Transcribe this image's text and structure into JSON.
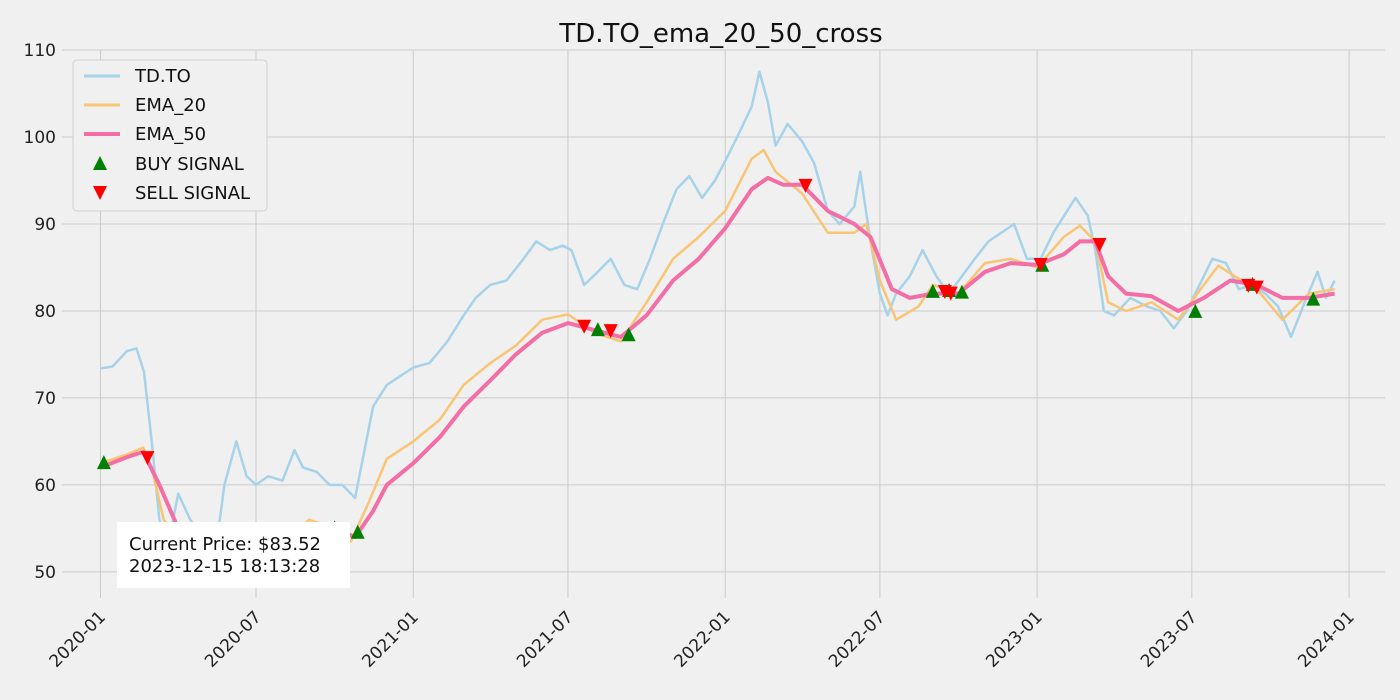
{
  "chart_data": {
    "type": "line",
    "title": "TD.TO_ema_20_50_cross",
    "xlabel": "",
    "ylabel": "",
    "ylim": [
      47,
      110
    ],
    "xlim": [
      "2019-11-17",
      "2024-02-12"
    ],
    "x_ticks": [
      "2020-01",
      "2020-07",
      "2021-01",
      "2021-07",
      "2022-01",
      "2022-07",
      "2023-01",
      "2023-07",
      "2024-01"
    ],
    "y_ticks": [
      50,
      60,
      70,
      80,
      90,
      100,
      110
    ],
    "grid": true,
    "legend_position": "top-left",
    "colors": {
      "price": "#a6d3ea",
      "ema20": "#f9c574",
      "ema50": "#f46ea6",
      "buy": "#008000",
      "sell": "#ff0000"
    },
    "series": [
      {
        "name": "TD.TO",
        "points": [
          [
            "2020-01-01",
            73.4
          ],
          [
            "2020-01-15",
            73.6
          ],
          [
            "2020-02-01",
            75.4
          ],
          [
            "2020-02-12",
            75.7
          ],
          [
            "2020-02-21",
            73.0
          ],
          [
            "2020-03-01",
            65.0
          ],
          [
            "2020-03-10",
            56.0
          ],
          [
            "2020-03-20",
            53.0
          ],
          [
            "2020-04-01",
            59.0
          ],
          [
            "2020-04-15",
            56.0
          ],
          [
            "2020-05-01",
            54.0
          ],
          [
            "2020-05-15",
            52.5
          ],
          [
            "2020-05-25",
            60.0
          ],
          [
            "2020-06-08",
            65.0
          ],
          [
            "2020-06-20",
            61.0
          ],
          [
            "2020-07-01",
            60.0
          ],
          [
            "2020-07-15",
            61.0
          ],
          [
            "2020-08-01",
            60.5
          ],
          [
            "2020-08-15",
            64.0
          ],
          [
            "2020-08-25",
            62.0
          ],
          [
            "2020-09-10",
            61.5
          ],
          [
            "2020-09-25",
            60.0
          ],
          [
            "2020-10-10",
            60.0
          ],
          [
            "2020-10-25",
            58.5
          ],
          [
            "2020-11-05",
            64.0
          ],
          [
            "2020-11-15",
            69.0
          ],
          [
            "2020-12-01",
            71.5
          ],
          [
            "2021-01-01",
            73.5
          ],
          [
            "2021-01-20",
            74.0
          ],
          [
            "2021-02-10",
            76.5
          ],
          [
            "2021-03-01",
            79.5
          ],
          [
            "2021-03-15",
            81.5
          ],
          [
            "2021-04-01",
            83.0
          ],
          [
            "2021-04-20",
            83.5
          ],
          [
            "2021-05-10",
            86.0
          ],
          [
            "2021-05-25",
            88.0
          ],
          [
            "2021-06-10",
            87.0
          ],
          [
            "2021-06-25",
            87.5
          ],
          [
            "2021-07-05",
            87.0
          ],
          [
            "2021-07-20",
            83.0
          ],
          [
            "2021-08-05",
            84.5
          ],
          [
            "2021-08-20",
            86.0
          ],
          [
            "2021-09-05",
            83.0
          ],
          [
            "2021-09-20",
            82.5
          ],
          [
            "2021-10-05",
            86.0
          ],
          [
            "2021-10-20",
            90.0
          ],
          [
            "2021-11-05",
            94.0
          ],
          [
            "2021-11-20",
            95.5
          ],
          [
            "2021-12-05",
            93.0
          ],
          [
            "2021-12-20",
            95.0
          ],
          [
            "2022-01-05",
            98.0
          ],
          [
            "2022-01-20",
            101.0
          ],
          [
            "2022-02-01",
            103.5
          ],
          [
            "2022-02-10",
            107.5
          ],
          [
            "2022-02-20",
            104.0
          ],
          [
            "2022-03-01",
            99.0
          ],
          [
            "2022-03-15",
            101.5
          ],
          [
            "2022-04-01",
            99.5
          ],
          [
            "2022-04-15",
            97.0
          ],
          [
            "2022-05-01",
            91.5
          ],
          [
            "2022-05-15",
            90.0
          ],
          [
            "2022-06-01",
            92.0
          ],
          [
            "2022-06-08",
            96.0
          ],
          [
            "2022-06-20",
            88.0
          ],
          [
            "2022-07-01",
            82.0
          ],
          [
            "2022-07-10",
            79.5
          ],
          [
            "2022-07-20",
            82.0
          ],
          [
            "2022-08-05",
            84.0
          ],
          [
            "2022-08-20",
            87.0
          ],
          [
            "2022-09-05",
            84.0
          ],
          [
            "2022-09-20",
            82.0
          ],
          [
            "2022-10-05",
            84.0
          ],
          [
            "2022-10-20",
            86.0
          ],
          [
            "2022-11-05",
            88.0
          ],
          [
            "2022-11-20",
            89.0
          ],
          [
            "2022-12-05",
            90.0
          ],
          [
            "2022-12-20",
            86.0
          ],
          [
            "2023-01-05",
            86.0
          ],
          [
            "2023-01-20",
            89.0
          ],
          [
            "2023-02-05",
            91.5
          ],
          [
            "2023-02-15",
            93.0
          ],
          [
            "2023-03-01",
            91.0
          ],
          [
            "2023-03-10",
            87.0
          ],
          [
            "2023-03-20",
            80.0
          ],
          [
            "2023-04-01",
            79.5
          ],
          [
            "2023-04-20",
            81.5
          ],
          [
            "2023-05-10",
            80.5
          ],
          [
            "2023-05-25",
            80.0
          ],
          [
            "2023-06-10",
            78.0
          ],
          [
            "2023-06-25",
            80.0
          ],
          [
            "2023-07-10",
            83.0
          ],
          [
            "2023-07-25",
            86.0
          ],
          [
            "2023-08-10",
            85.5
          ],
          [
            "2023-08-25",
            82.5
          ],
          [
            "2023-09-10",
            83.0
          ],
          [
            "2023-09-25",
            82.0
          ],
          [
            "2023-10-10",
            80.5
          ],
          [
            "2023-10-25",
            77.0
          ],
          [
            "2023-11-10",
            81.0
          ],
          [
            "2023-11-25",
            84.5
          ],
          [
            "2023-12-05",
            81.5
          ],
          [
            "2023-12-15",
            83.5
          ]
        ]
      },
      {
        "name": "EMA_20",
        "points": [
          [
            "2020-01-01",
            62.5
          ],
          [
            "2020-02-01",
            63.5
          ],
          [
            "2020-02-20",
            64.3
          ],
          [
            "2020-03-01",
            62.0
          ],
          [
            "2020-03-15",
            56.0
          ],
          [
            "2020-04-01",
            54.0
          ],
          [
            "2020-05-01",
            52.0
          ],
          [
            "2020-05-15",
            50.0
          ],
          [
            "2020-06-01",
            51.5
          ],
          [
            "2020-07-01",
            52.5
          ],
          [
            "2020-08-01",
            53.0
          ],
          [
            "2020-09-01",
            56.0
          ],
          [
            "2020-10-01",
            55.0
          ],
          [
            "2020-10-20",
            53.5
          ],
          [
            "2020-11-10",
            58.0
          ],
          [
            "2020-12-01",
            63.0
          ],
          [
            "2021-01-01",
            65.0
          ],
          [
            "2021-02-01",
            67.5
          ],
          [
            "2021-03-01",
            71.5
          ],
          [
            "2021-04-01",
            74.0
          ],
          [
            "2021-05-01",
            76.0
          ],
          [
            "2021-06-01",
            79.0
          ],
          [
            "2021-07-01",
            79.6
          ],
          [
            "2021-08-01",
            77.5
          ],
          [
            "2021-09-01",
            76.5
          ],
          [
            "2021-10-01",
            81.0
          ],
          [
            "2021-11-01",
            86.0
          ],
          [
            "2021-12-01",
            88.5
          ],
          [
            "2022-01-01",
            91.5
          ],
          [
            "2022-02-01",
            97.5
          ],
          [
            "2022-02-15",
            98.5
          ],
          [
            "2022-03-01",
            96.0
          ],
          [
            "2022-04-01",
            93.5
          ],
          [
            "2022-05-01",
            89.0
          ],
          [
            "2022-06-01",
            89.0
          ],
          [
            "2022-06-15",
            90.0
          ],
          [
            "2022-07-01",
            83.5
          ],
          [
            "2022-07-20",
            79.0
          ],
          [
            "2022-08-15",
            80.5
          ],
          [
            "2022-09-01",
            83.0
          ],
          [
            "2022-10-01",
            82.0
          ],
          [
            "2022-11-01",
            85.5
          ],
          [
            "2022-12-01",
            86.0
          ],
          [
            "2023-01-01",
            85.0
          ],
          [
            "2023-02-01",
            88.5
          ],
          [
            "2023-02-20",
            89.8
          ],
          [
            "2023-03-10",
            88.0
          ],
          [
            "2023-03-25",
            81.0
          ],
          [
            "2023-04-15",
            80.0
          ],
          [
            "2023-05-15",
            81.0
          ],
          [
            "2023-06-15",
            79.0
          ],
          [
            "2023-07-15",
            83.0
          ],
          [
            "2023-08-01",
            85.2
          ],
          [
            "2023-08-20",
            84.0
          ],
          [
            "2023-09-15",
            82.5
          ],
          [
            "2023-10-15",
            79.0
          ],
          [
            "2023-11-15",
            82.0
          ],
          [
            "2023-12-15",
            82.5
          ]
        ]
      },
      {
        "name": "EMA_50",
        "points": [
          [
            "2020-01-01",
            62.0
          ],
          [
            "2020-02-01",
            63.2
          ],
          [
            "2020-02-20",
            63.8
          ],
          [
            "2020-03-10",
            60.0
          ],
          [
            "2020-04-01",
            55.0
          ],
          [
            "2020-05-01",
            53.0
          ],
          [
            "2020-06-01",
            52.0
          ],
          [
            "2020-07-01",
            52.5
          ],
          [
            "2020-08-01",
            53.5
          ],
          [
            "2020-09-01",
            55.0
          ],
          [
            "2020-10-01",
            55.0
          ],
          [
            "2020-10-25",
            54.0
          ],
          [
            "2020-11-15",
            57.0
          ],
          [
            "2020-12-01",
            60.0
          ],
          [
            "2021-01-01",
            62.5
          ],
          [
            "2021-02-01",
            65.5
          ],
          [
            "2021-03-01",
            69.0
          ],
          [
            "2021-04-01",
            72.0
          ],
          [
            "2021-05-01",
            75.0
          ],
          [
            "2021-06-01",
            77.5
          ],
          [
            "2021-07-01",
            78.6
          ],
          [
            "2021-08-01",
            77.8
          ],
          [
            "2021-09-01",
            77.0
          ],
          [
            "2021-10-01",
            79.5
          ],
          [
            "2021-11-01",
            83.5
          ],
          [
            "2021-12-01",
            86.0
          ],
          [
            "2022-01-01",
            89.5
          ],
          [
            "2022-02-01",
            94.0
          ],
          [
            "2022-02-20",
            95.3
          ],
          [
            "2022-03-10",
            94.5
          ],
          [
            "2022-04-01",
            94.5
          ],
          [
            "2022-05-01",
            91.5
          ],
          [
            "2022-06-01",
            90.0
          ],
          [
            "2022-06-20",
            88.5
          ],
          [
            "2022-07-15",
            82.5
          ],
          [
            "2022-08-05",
            81.5
          ],
          [
            "2022-09-01",
            82.0
          ],
          [
            "2022-10-01",
            82.0
          ],
          [
            "2022-11-01",
            84.5
          ],
          [
            "2022-12-01",
            85.5
          ],
          [
            "2023-01-01",
            85.3
          ],
          [
            "2023-02-01",
            86.5
          ],
          [
            "2023-02-20",
            88.0
          ],
          [
            "2023-03-10",
            88.0
          ],
          [
            "2023-03-25",
            84.0
          ],
          [
            "2023-04-15",
            82.0
          ],
          [
            "2023-05-15",
            81.7
          ],
          [
            "2023-06-15",
            80.0
          ],
          [
            "2023-07-15",
            81.5
          ],
          [
            "2023-08-15",
            83.5
          ],
          [
            "2023-09-15",
            83.0
          ],
          [
            "2023-10-15",
            81.5
          ],
          [
            "2023-11-15",
            81.5
          ],
          [
            "2023-12-15",
            82.0
          ]
        ]
      }
    ],
    "buy_signals": [
      [
        "2020-01-05",
        62.5
      ],
      [
        "2020-10-01",
        55.0
      ],
      [
        "2020-10-28",
        54.5
      ],
      [
        "2021-08-05",
        77.8
      ],
      [
        "2021-09-10",
        77.2
      ],
      [
        "2022-09-01",
        82.2
      ],
      [
        "2022-09-20",
        82.3
      ],
      [
        "2022-10-05",
        82.1
      ],
      [
        "2023-01-07",
        85.2
      ],
      [
        "2023-07-05",
        79.9
      ],
      [
        "2023-09-10",
        83.0
      ],
      [
        "2023-11-20",
        81.3
      ]
    ],
    "sell_signals": [
      [
        "2020-02-25",
        63.2
      ],
      [
        "2020-10-07",
        55.0
      ],
      [
        "2021-07-20",
        78.3
      ],
      [
        "2021-08-20",
        77.8
      ],
      [
        "2022-04-05",
        94.5
      ],
      [
        "2022-09-15",
        82.3
      ],
      [
        "2022-09-22",
        82.1
      ],
      [
        "2023-01-05",
        85.4
      ],
      [
        "2023-03-15",
        87.7
      ],
      [
        "2023-09-05",
        83.0
      ],
      [
        "2023-09-15",
        82.8
      ]
    ],
    "legend": {
      "entries": [
        "TD.TO",
        "EMA_20",
        "EMA_50",
        "BUY SIGNAL",
        "SELL SIGNAL"
      ]
    },
    "annotation": {
      "line1": "Current Price: $83.52",
      "line2": "2023-12-15 18:13:28"
    }
  }
}
